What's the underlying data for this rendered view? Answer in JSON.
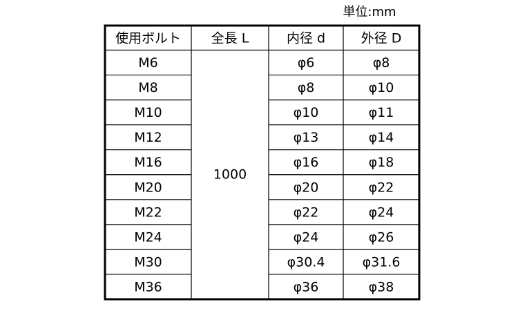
{
  "header": {
    "unit": "単位:mm"
  },
  "table": {
    "columns": [
      "使用ボルト",
      "全長 L",
      "内径 d",
      "外径 D"
    ],
    "length": "1000",
    "rows": [
      [
        "M6",
        "φ6",
        "φ8"
      ],
      [
        "M8",
        "φ8",
        "φ10"
      ],
      [
        "M10",
        "φ10",
        "φ11"
      ],
      [
        "M12",
        "φ13",
        "φ14"
      ],
      [
        "M16",
        "φ16",
        "φ18"
      ],
      [
        "M20",
        "φ20",
        "φ22"
      ],
      [
        "M22",
        "φ22",
        "φ24"
      ],
      [
        "M24",
        "φ24",
        "φ26"
      ],
      [
        "M30",
        "φ30.4",
        "φ31.6"
      ],
      [
        "M36",
        "φ36",
        "φ38"
      ]
    ]
  }
}
